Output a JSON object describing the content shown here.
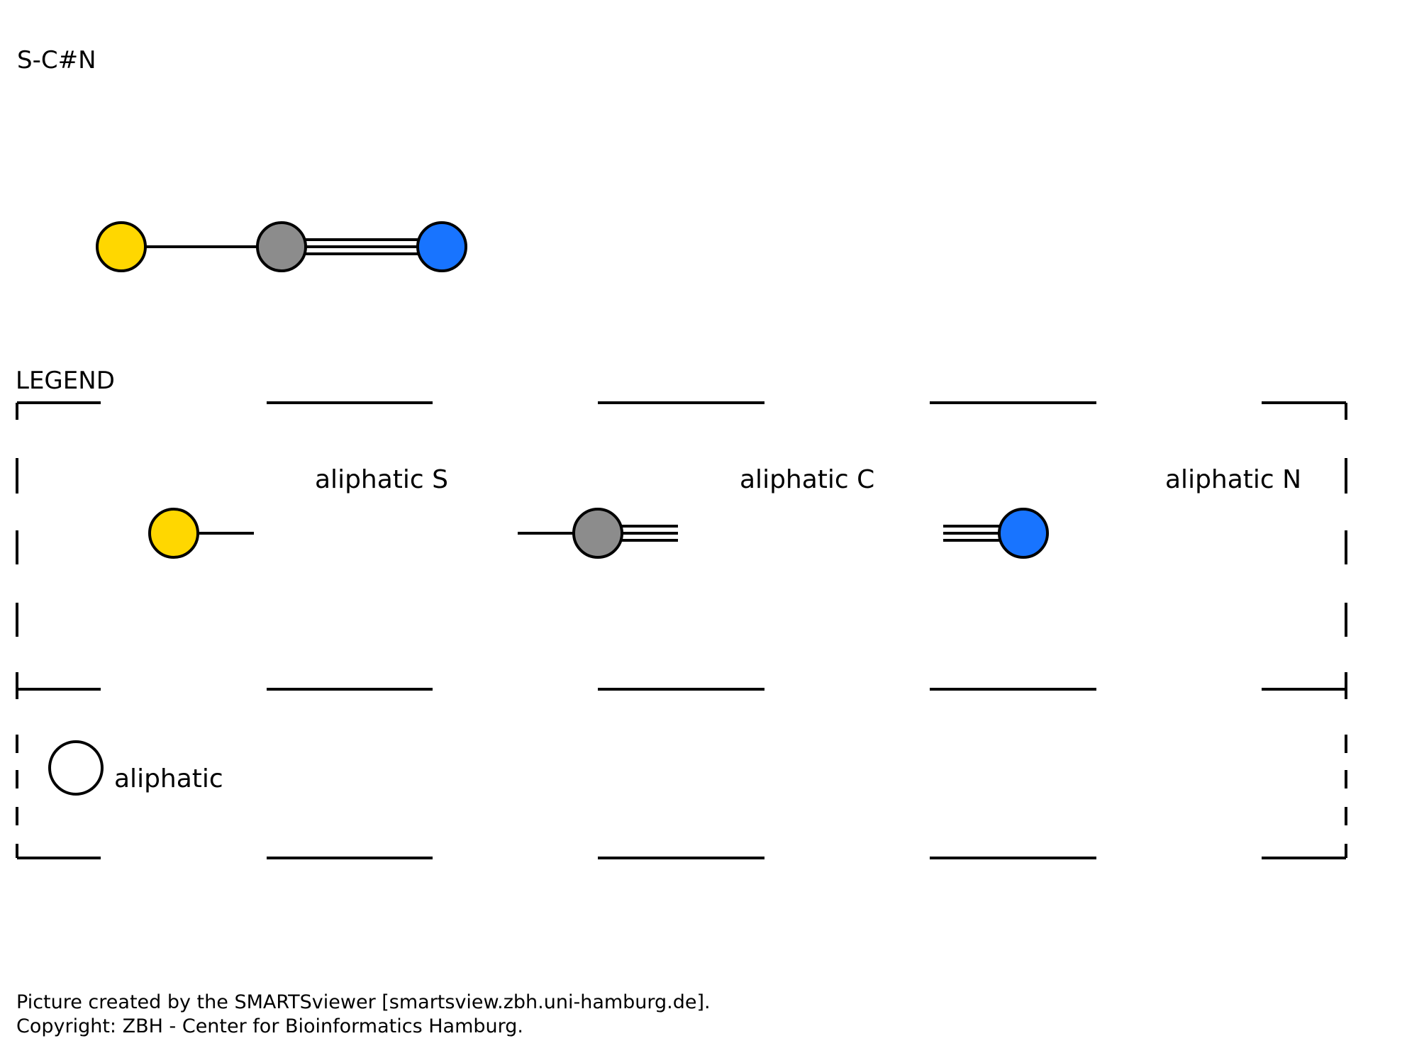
{
  "pattern": {
    "smarts": "S-C#N"
  },
  "molecule": {
    "atoms": [
      {
        "id": "S",
        "element": "S",
        "type": "aliphatic",
        "color": "#FFD700"
      },
      {
        "id": "C",
        "element": "C",
        "type": "aliphatic",
        "color": "#8C8C8C"
      },
      {
        "id": "N",
        "element": "N",
        "type": "aliphatic",
        "color": "#1874FF"
      }
    ],
    "bonds": [
      {
        "from": "S",
        "to": "C",
        "order": "single"
      },
      {
        "from": "C",
        "to": "N",
        "order": "triple"
      }
    ]
  },
  "legend": {
    "title": "LEGEND",
    "entries": [
      {
        "label": "aliphatic S",
        "color": "#FFD700",
        "bond": "single"
      },
      {
        "label": "aliphatic C",
        "color": "#8C8C8C",
        "bond": "single+triple"
      },
      {
        "label": "aliphatic N",
        "color": "#1874FF",
        "bond": "triple"
      }
    ],
    "key": {
      "label": "aliphatic",
      "fill": "#FFFFFF"
    }
  },
  "footer": {
    "line1": "Picture created by the SMARTSviewer [smartsview.zbh.uni-hamburg.de].",
    "line2": "Copyright: ZBH - Center for Bioinformatics Hamburg."
  }
}
